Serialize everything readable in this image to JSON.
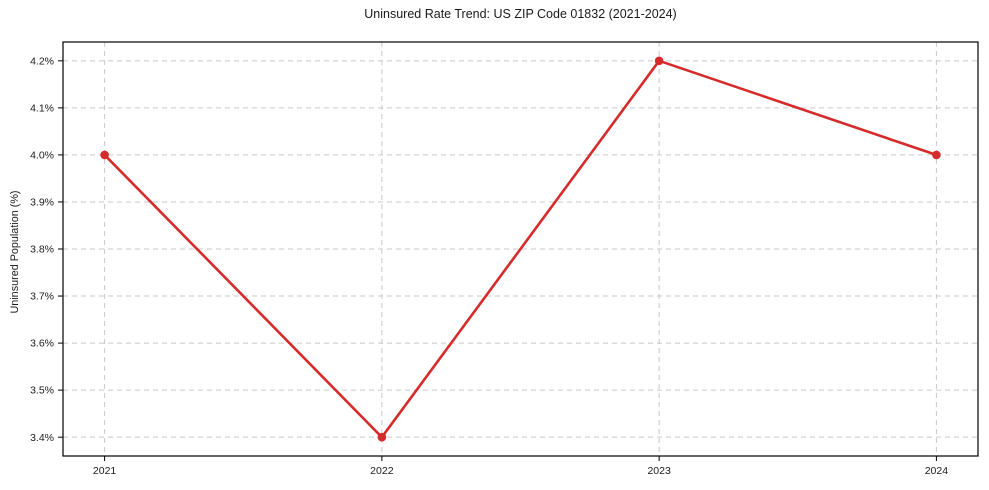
{
  "page": {
    "background_color": "#ffffff"
  },
  "chart_data": {
    "type": "line",
    "title": "Uninsured Rate Trend: US ZIP Code 01832 (2021-2024)",
    "xlabel": "",
    "ylabel": "Uninsured Population (%)",
    "x": [
      2021,
      2022,
      2023,
      2024
    ],
    "x_tick_values": [
      2021,
      2022,
      2023,
      2024
    ],
    "x_tick_labels": [
      "2021",
      "2022",
      "2023",
      "2024"
    ],
    "y_tick_values": [
      3.4,
      3.5,
      3.6,
      3.7,
      3.8,
      3.9,
      4.0,
      4.1,
      4.2
    ],
    "y_tick_labels": [
      "3.4%",
      "3.5%",
      "3.6%",
      "3.7%",
      "3.8%",
      "3.9%",
      "4.0%",
      "4.1%",
      "4.2%"
    ],
    "series": [
      {
        "values": [
          4.0,
          3.4,
          4.2,
          4.0
        ]
      }
    ],
    "xlim": [
      2020.85,
      2024.15
    ],
    "ylim": [
      3.36,
      4.24
    ],
    "grid": "both-dashed",
    "legend": "none",
    "line_color": "#d62b2b",
    "marker_color": "#d62b2b",
    "grid_color": "#c9c9c9",
    "spine_color": "#000000",
    "text_color": "#1a1a1a"
  }
}
